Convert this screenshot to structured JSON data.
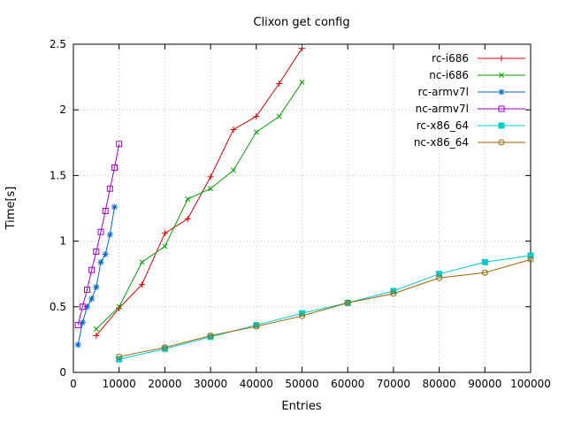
{
  "chart_data": {
    "type": "line",
    "title": "Clixon get config",
    "xlabel": "Entries",
    "ylabel": "Time[s]",
    "xlim": [
      0,
      100000
    ],
    "ylim": [
      0,
      2.5
    ],
    "xtick_values": [
      0,
      10000,
      20000,
      30000,
      40000,
      50000,
      60000,
      70000,
      80000,
      90000,
      100000
    ],
    "xtick_labels": [
      "0",
      "10000",
      "20000",
      "30000",
      "40000",
      "50000",
      "60000",
      "70000",
      "80000",
      "90000",
      "100000"
    ],
    "ytick_values": [
      0,
      0.5,
      1,
      1.5,
      2,
      2.5
    ],
    "ytick_labels": [
      "0",
      "0.5",
      "1",
      "1.5",
      "2",
      "2.5"
    ],
    "grid": true,
    "legend_position": "top-right-inside",
    "axis_color": "#000000",
    "grid_color": "#c4c4c4",
    "series": [
      {
        "name": "rc-i686",
        "color": "#dd0000",
        "marker": "plus",
        "x": [
          5000,
          10000,
          15000,
          20000,
          25000,
          30000,
          35000,
          40000,
          45000,
          50000
        ],
        "y": [
          0.28,
          0.49,
          0.67,
          1.06,
          1.17,
          1.49,
          1.85,
          1.95,
          2.2,
          2.47
        ]
      },
      {
        "name": "nc-i686",
        "color": "#00a000",
        "marker": "cross",
        "x": [
          5000,
          10000,
          15000,
          20000,
          25000,
          30000,
          35000,
          40000,
          45000,
          50000
        ],
        "y": [
          0.33,
          0.5,
          0.84,
          0.96,
          1.32,
          1.4,
          1.54,
          1.83,
          1.95,
          2.21
        ]
      },
      {
        "name": "rc-armv7l",
        "color": "#0066cc",
        "marker": "asterisk",
        "x": [
          1000,
          2000,
          3000,
          4000,
          5000,
          6000,
          7000,
          8000,
          9000
        ],
        "y": [
          0.21,
          0.38,
          0.5,
          0.56,
          0.65,
          0.84,
          0.9,
          1.05,
          1.26
        ]
      },
      {
        "name": "nc-armv7l",
        "color": "#a000c8",
        "marker": "square-open",
        "x": [
          1000,
          2000,
          3000,
          4000,
          5000,
          6000,
          7000,
          8000,
          9000,
          10000
        ],
        "y": [
          0.36,
          0.5,
          0.63,
          0.78,
          0.92,
          1.07,
          1.23,
          1.4,
          1.56,
          1.74
        ]
      },
      {
        "name": "rc-x86_64",
        "color": "#00cccc",
        "marker": "square-filled",
        "x": [
          10000,
          20000,
          30000,
          40000,
          50000,
          60000,
          70000,
          80000,
          90000,
          100000
        ],
        "y": [
          0.1,
          0.18,
          0.27,
          0.36,
          0.45,
          0.53,
          0.62,
          0.75,
          0.84,
          0.89
        ]
      },
      {
        "name": "nc-x86_64",
        "color": "#996600",
        "marker": "circle-open",
        "x": [
          10000,
          20000,
          30000,
          40000,
          50000,
          60000,
          70000,
          80000,
          90000,
          100000
        ],
        "y": [
          0.12,
          0.19,
          0.28,
          0.35,
          0.43,
          0.53,
          0.6,
          0.72,
          0.76,
          0.86
        ]
      }
    ]
  }
}
